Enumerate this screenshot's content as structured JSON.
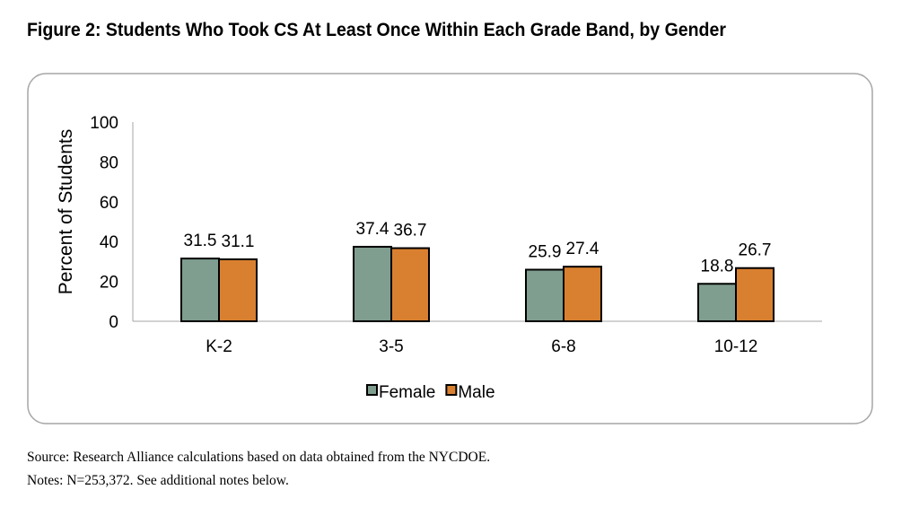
{
  "chart_data": {
    "type": "bar",
    "title": "Figure 2: Students Who Took CS At Least Once Within Each Grade Band, by Gender",
    "xlabel": "",
    "ylabel": "Percent of Students",
    "ylim": [
      0,
      100
    ],
    "yticks": [
      "0",
      "20",
      "40",
      "60",
      "80",
      "100"
    ],
    "categories": [
      "K-2",
      "3-5",
      "6-8",
      "10-12"
    ],
    "series": [
      {
        "name": "Female",
        "color": "#7f9e8f",
        "values": [
          31.5,
          37.4,
          25.9,
          18.8
        ]
      },
      {
        "name": "Male",
        "color": "#d98030",
        "values": [
          31.1,
          36.7,
          27.4,
          26.7
        ]
      }
    ],
    "grid": false,
    "legend": "bottom"
  },
  "notes": {
    "source": "Source: Research Alliance calculations based on data obtained from the NYCDOE.",
    "notes": "Notes: N=253,372. See additional notes below."
  }
}
